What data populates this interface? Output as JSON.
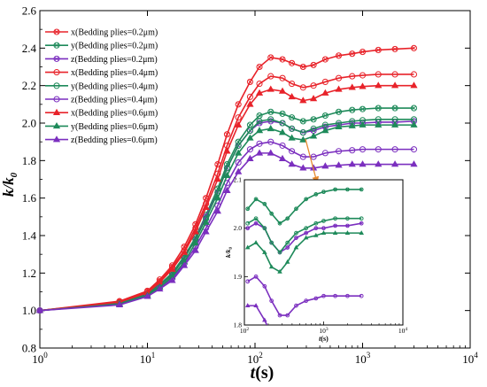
{
  "chart_data": [
    {
      "type": "line",
      "xscale": "log",
      "xlim": [
        1,
        10000
      ],
      "ylim": [
        0.8,
        2.6
      ],
      "xlabel_main": "t",
      "xlabel_unit": "(s)",
      "ylabel_main": "k",
      "ylabel_denominator": "k",
      "ylabel_subscript": "0",
      "xticks": [
        {
          "value": 1,
          "base": "10",
          "exp": "0"
        },
        {
          "value": 10,
          "base": "10",
          "exp": "1"
        },
        {
          "value": 100,
          "base": "10",
          "exp": "2"
        },
        {
          "value": 1000,
          "base": "10",
          "exp": "3"
        },
        {
          "value": 10000,
          "base": "10",
          "exp": "4"
        }
      ],
      "yticks": [
        "0.8",
        "1.0",
        "1.2",
        "1.4",
        "1.6",
        "1.8",
        "2.0",
        "2.2",
        "2.4",
        "2.6"
      ],
      "x": [
        1,
        5.5,
        10,
        13,
        17,
        22,
        28,
        35,
        45,
        55,
        70,
        90,
        110,
        140,
        180,
        220,
        280,
        350,
        450,
        600,
        800,
        1000,
        1400,
        2000,
        3000
      ],
      "series": [
        {
          "name": "x(Bedding plies=0.2μm)",
          "color": "#e8232a",
          "marker": "circle-x",
          "values": [
            1.0,
            1.05,
            1.105,
            1.165,
            1.24,
            1.34,
            1.46,
            1.6,
            1.78,
            1.94,
            2.1,
            2.22,
            2.3,
            2.35,
            2.34,
            2.32,
            2.3,
            2.31,
            2.34,
            2.36,
            2.37,
            2.38,
            2.39,
            2.395,
            2.4
          ]
        },
        {
          "name": "y(Bedding plies=0.2μm)",
          "color": "#1e8a5a",
          "marker": "circle-x",
          "values": [
            1.0,
            1.04,
            1.09,
            1.14,
            1.2,
            1.29,
            1.39,
            1.51,
            1.65,
            1.78,
            1.9,
            1.99,
            2.04,
            2.06,
            2.05,
            2.03,
            2.01,
            2.02,
            2.04,
            2.06,
            2.07,
            2.075,
            2.08,
            2.08,
            2.08
          ]
        },
        {
          "name": "z(Bedding plies=0.2μm)",
          "color": "#7b2fbf",
          "marker": "circle-x",
          "values": [
            1.0,
            1.04,
            1.085,
            1.135,
            1.19,
            1.28,
            1.38,
            1.5,
            1.63,
            1.76,
            1.88,
            1.96,
            2.0,
            2.01,
            2.0,
            1.97,
            1.95,
            1.96,
            1.98,
            1.99,
            2.0,
            2.0,
            2.005,
            2.005,
            2.01
          ]
        },
        {
          "name": "x(Bedding plies=0.4μm)",
          "color": "#e8232a",
          "marker": "circle-open",
          "values": [
            1.0,
            1.045,
            1.1,
            1.155,
            1.23,
            1.32,
            1.44,
            1.57,
            1.73,
            1.88,
            2.03,
            2.14,
            2.21,
            2.25,
            2.24,
            2.21,
            2.19,
            2.2,
            2.22,
            2.24,
            2.25,
            2.255,
            2.26,
            2.26,
            2.26
          ]
        },
        {
          "name": "y(Bedding plies=0.4μm)",
          "color": "#1e8a5a",
          "marker": "circle-open",
          "values": [
            1.0,
            1.04,
            1.085,
            1.135,
            1.19,
            1.28,
            1.38,
            1.49,
            1.63,
            1.76,
            1.88,
            1.96,
            2.01,
            2.02,
            2.0,
            1.97,
            1.95,
            1.97,
            1.99,
            2.0,
            2.01,
            2.015,
            2.02,
            2.02,
            2.02
          ]
        },
        {
          "name": "z(Bedding plies=0.4μm)",
          "color": "#7b2fbf",
          "marker": "circle-open",
          "values": [
            1.0,
            1.035,
            1.08,
            1.12,
            1.17,
            1.25,
            1.34,
            1.44,
            1.56,
            1.68,
            1.79,
            1.86,
            1.89,
            1.9,
            1.88,
            1.85,
            1.82,
            1.82,
            1.84,
            1.85,
            1.855,
            1.86,
            1.86,
            1.86,
            1.86
          ]
        },
        {
          "name": "x(Bedding plies=0.6μm)",
          "color": "#e8232a",
          "marker": "triangle",
          "values": [
            1.0,
            1.045,
            1.095,
            1.15,
            1.22,
            1.31,
            1.42,
            1.55,
            1.7,
            1.85,
            1.99,
            2.1,
            2.16,
            2.18,
            2.17,
            2.14,
            2.12,
            2.13,
            2.16,
            2.18,
            2.19,
            2.195,
            2.2,
            2.2,
            2.2
          ]
        },
        {
          "name": "y(Bedding plies=0.6μm)",
          "color": "#1e8a5a",
          "marker": "triangle",
          "values": [
            1.0,
            1.035,
            1.08,
            1.125,
            1.18,
            1.26,
            1.36,
            1.47,
            1.6,
            1.72,
            1.84,
            1.92,
            1.96,
            1.97,
            1.95,
            1.92,
            1.91,
            1.93,
            1.96,
            1.98,
            1.985,
            1.99,
            1.99,
            1.99,
            1.99
          ]
        },
        {
          "name": "z(Bedding plies=0.6μm)",
          "color": "#7b2fbf",
          "marker": "triangle",
          "values": [
            1.0,
            1.03,
            1.075,
            1.115,
            1.16,
            1.24,
            1.32,
            1.42,
            1.53,
            1.64,
            1.74,
            1.81,
            1.84,
            1.84,
            1.81,
            1.78,
            1.76,
            1.76,
            1.77,
            1.775,
            1.78,
            1.78,
            1.78,
            1.78,
            1.78
          ]
        }
      ],
      "legend_position": "top-left",
      "grid": false
    },
    {
      "type": "line",
      "role": "inset",
      "xscale": "log",
      "xlim": [
        100,
        10000
      ],
      "ylim": [
        1.8,
        2.1
      ],
      "xlabel_main": "t",
      "xlabel_unit": "(s)",
      "ylabel_main": "k",
      "ylabel_denominator": "k",
      "ylabel_subscript": "0",
      "xticks": [
        {
          "value": 100,
          "base": "10",
          "exp": "2"
        },
        {
          "value": 1000,
          "base": "10",
          "exp": "3"
        },
        {
          "value": 10000,
          "base": "10",
          "exp": "4"
        }
      ],
      "yticks": [
        "1.8",
        "1.9",
        "2.0",
        "2.1"
      ],
      "shows_series": "all except x(Bedding plies=0.2μm) and x(Bedding plies=0.4μm)",
      "arrow": true
    }
  ]
}
